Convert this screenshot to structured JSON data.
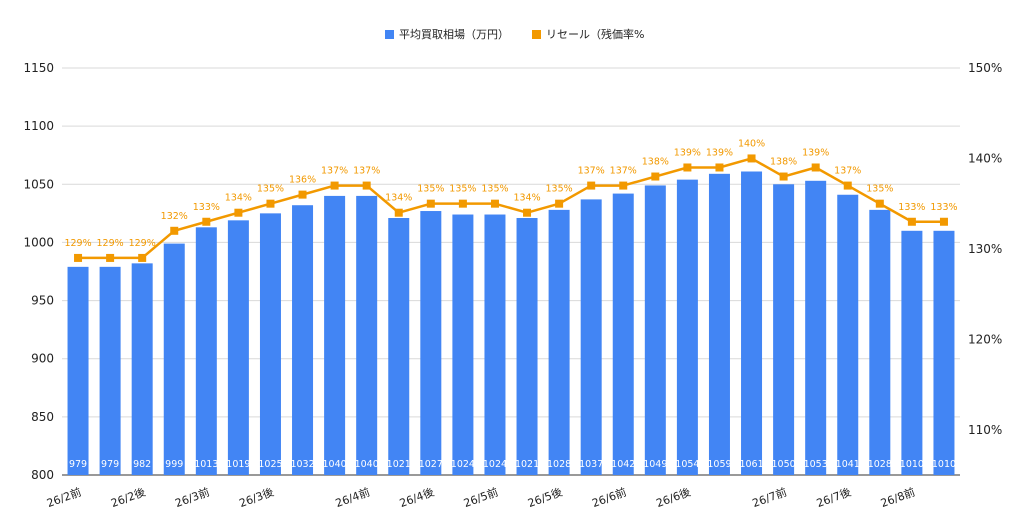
{
  "chart_data": {
    "type": "bar",
    "categories": [
      "26/2前",
      "",
      "26/2後",
      "",
      "26/3前",
      "",
      "26/3後",
      "",
      "",
      "26/4前",
      "",
      "26/4後",
      "",
      "26/5前",
      "",
      "26/5後",
      "",
      "26/6前",
      "",
      "26/6後",
      "",
      "",
      "26/7前",
      "",
      "26/7後",
      "",
      "26/8前",
      ""
    ],
    "series": [
      {
        "name": "平均買取相場（万円）",
        "type": "bar",
        "axis": "left",
        "color": "#4285f4",
        "values": [
          979,
          979,
          982,
          999,
          1013,
          1019,
          1025,
          1032,
          1040,
          1040,
          1021,
          1027,
          1024,
          1024,
          1021,
          1028,
          1037,
          1042,
          1049,
          1054,
          1059,
          1061,
          1050,
          1053,
          1041,
          1028,
          1010,
          1010
        ],
        "labels": [
          "979",
          "979",
          "982",
          "999",
          "1013",
          "1019",
          "1025",
          "1032",
          "1040",
          "1040",
          "1021",
          "1027",
          "1024",
          "1024",
          "1021",
          "1028",
          "1037",
          "1042",
          "1049",
          "1054",
          "1059",
          "1061",
          "1050",
          "1053",
          "1041",
          "1028",
          "1010",
          "1010"
        ]
      },
      {
        "name": "リセール（残価率%",
        "type": "line",
        "axis": "right",
        "color": "#f29900",
        "values": [
          129,
          129,
          129,
          132,
          133,
          134,
          135,
          136,
          137,
          137,
          134,
          135,
          135,
          135,
          134,
          135,
          137,
          137,
          138,
          139,
          139,
          140,
          138,
          139,
          137,
          135,
          133,
          133
        ],
        "labels": [
          "129%",
          "129%",
          "129%",
          "132%",
          "133%",
          "134%",
          "135%",
          "136%",
          "137%",
          "137%",
          "134%",
          "135%",
          "135%",
          "135%",
          "134%",
          "135%",
          "137%",
          "137%",
          "138%",
          "139%",
          "139%",
          "140%",
          "138%",
          "139%",
          "137%",
          "135%",
          "133%",
          "133%"
        ]
      }
    ],
    "y_left": {
      "ylim": [
        800,
        1150
      ],
      "ticks": [
        "800",
        "850",
        "900",
        "950",
        "1000",
        "1050",
        "1100",
        "1150"
      ]
    },
    "y_right": {
      "ylim": [
        105,
        150
      ],
      "ticks": [
        "110%",
        "120%",
        "130%",
        "140%",
        "150%"
      ]
    },
    "grid": true,
    "legend_position": "top-center"
  }
}
